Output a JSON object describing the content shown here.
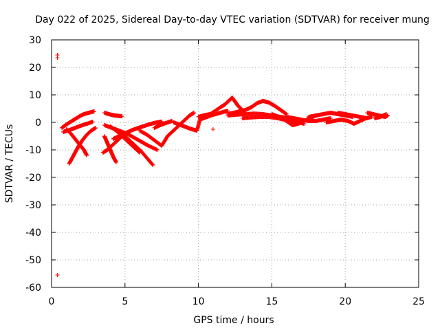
{
  "chart_data": {
    "type": "scatter",
    "title": "Day 022 of 2025, Sidereal Day-to-day VTEC variation (SDTVAR) for receiver mung",
    "xlabel": "GPS time / hours",
    "ylabel": "SDTVAR / TECUs",
    "xlim": [
      0,
      25
    ],
    "ylim": [
      -60,
      30
    ],
    "x_ticks": [
      0,
      5,
      10,
      15,
      20,
      25
    ],
    "y_ticks": [
      -60,
      -50,
      -40,
      -30,
      -20,
      -10,
      0,
      10,
      20,
      30
    ],
    "grid": true,
    "marker": "+",
    "series": [
      {
        "name": "SDTVAR",
        "color": "#ff0000",
        "points": [
          [
            0.4,
            24.5
          ],
          [
            0.4,
            23.5
          ],
          [
            0.4,
            -55.5
          ],
          [
            11.0,
            -2.5
          ],
          [
            0.7,
            -2.0
          ],
          [
            1.0,
            -0.8
          ],
          [
            1.3,
            0.2
          ],
          [
            1.6,
            1.2
          ],
          [
            1.9,
            2.2
          ],
          [
            2.2,
            3.0
          ],
          [
            2.6,
            3.6
          ],
          [
            2.9,
            4.0
          ],
          [
            0.8,
            -3.5
          ],
          [
            1.2,
            -2.8
          ],
          [
            1.6,
            -2.0
          ],
          [
            2.0,
            -1.2
          ],
          [
            2.4,
            -0.5
          ],
          [
            2.8,
            0.2
          ],
          [
            1.2,
            -15.0
          ],
          [
            1.5,
            -12.0
          ],
          [
            1.8,
            -9.0
          ],
          [
            2.1,
            -6.5
          ],
          [
            2.4,
            -4.5
          ],
          [
            2.7,
            -3.0
          ],
          [
            3.0,
            -2.0
          ],
          [
            1.0,
            -2.5
          ],
          [
            1.3,
            -4.0
          ],
          [
            1.6,
            -6.0
          ],
          [
            1.9,
            -8.0
          ],
          [
            2.2,
            -10.0
          ],
          [
            2.4,
            -12.0
          ],
          [
            3.6,
            3.5
          ],
          [
            3.9,
            3.0
          ],
          [
            4.2,
            2.6
          ],
          [
            4.5,
            2.4
          ],
          [
            4.8,
            2.2
          ],
          [
            3.6,
            -5.0
          ],
          [
            3.8,
            -7.5
          ],
          [
            4.0,
            -10.0
          ],
          [
            4.2,
            -12.5
          ],
          [
            4.4,
            -14.5
          ],
          [
            3.5,
            -11.0
          ],
          [
            3.8,
            -10.0
          ],
          [
            4.1,
            -8.5
          ],
          [
            4.4,
            -7.0
          ],
          [
            4.7,
            -5.5
          ],
          [
            5.0,
            -4.0
          ],
          [
            3.6,
            -1.0
          ],
          [
            4.1,
            -2.0
          ],
          [
            4.6,
            -3.0
          ],
          [
            5.1,
            -4.0
          ],
          [
            5.6,
            -5.5
          ],
          [
            6.1,
            -7.0
          ],
          [
            6.6,
            -8.5
          ],
          [
            7.2,
            -10.0
          ],
          [
            4.2,
            -6.0
          ],
          [
            4.6,
            -5.0
          ],
          [
            5.0,
            -4.0
          ],
          [
            5.4,
            -3.0
          ],
          [
            5.8,
            -2.2
          ],
          [
            6.2,
            -1.5
          ],
          [
            6.6,
            -0.8
          ],
          [
            7.0,
            -0.2
          ],
          [
            7.5,
            0.3
          ],
          [
            4.5,
            -3.0
          ],
          [
            4.9,
            -4.5
          ],
          [
            5.3,
            -6.5
          ],
          [
            5.7,
            -8.5
          ],
          [
            6.1,
            -10.5
          ],
          [
            6.5,
            -13.0
          ],
          [
            6.9,
            -15.5
          ],
          [
            4.0,
            -1.5
          ],
          [
            4.4,
            -3.0
          ],
          [
            4.8,
            -5.0
          ],
          [
            5.2,
            -7.0
          ],
          [
            5.6,
            -9.0
          ],
          [
            6.0,
            -11.0
          ],
          [
            7.0,
            -2.0
          ],
          [
            7.4,
            -1.0
          ],
          [
            7.8,
            -0.2
          ],
          [
            8.2,
            0.5
          ],
          [
            6.0,
            -3.0
          ],
          [
            6.5,
            -4.5
          ],
          [
            7.0,
            -6.5
          ],
          [
            7.5,
            -8.5
          ],
          [
            7.9,
            -5.0
          ],
          [
            8.2,
            -3.5
          ],
          [
            8.5,
            -2.0
          ],
          [
            8.8,
            -0.5
          ],
          [
            9.1,
            1.0
          ],
          [
            9.4,
            2.5
          ],
          [
            9.7,
            3.5
          ],
          [
            8.3,
            0.0
          ],
          [
            8.7,
            -0.8
          ],
          [
            9.1,
            -1.6
          ],
          [
            9.5,
            -2.4
          ],
          [
            9.9,
            -3.0
          ],
          [
            10.1,
            1.0
          ],
          [
            10.5,
            1.8
          ],
          [
            10.9,
            2.6
          ],
          [
            11.3,
            3.2
          ],
          [
            11.7,
            3.8
          ],
          [
            12.0,
            4.2
          ],
          [
            10.0,
            2.0
          ],
          [
            10.4,
            2.6
          ],
          [
            10.8,
            3.0
          ],
          [
            11.5,
            5.5
          ],
          [
            11.8,
            6.5
          ],
          [
            12.1,
            8.0
          ],
          [
            12.3,
            9.0
          ],
          [
            12.5,
            7.5
          ],
          [
            12.7,
            6.0
          ],
          [
            12.9,
            5.0
          ],
          [
            12.0,
            3.0
          ],
          [
            12.4,
            3.5
          ],
          [
            12.8,
            4.0
          ],
          [
            13.2,
            4.5
          ],
          [
            13.6,
            5.5
          ],
          [
            14.0,
            7.0
          ],
          [
            14.4,
            7.8
          ],
          [
            14.8,
            7.2
          ],
          [
            15.2,
            6.0
          ],
          [
            15.6,
            4.5
          ],
          [
            16.0,
            3.0
          ],
          [
            12.0,
            2.5
          ],
          [
            12.6,
            2.8
          ],
          [
            13.2,
            3.0
          ],
          [
            13.8,
            3.2
          ],
          [
            14.4,
            3.0
          ],
          [
            15.0,
            2.5
          ],
          [
            15.6,
            2.0
          ],
          [
            16.2,
            1.5
          ],
          [
            16.8,
            1.0
          ],
          [
            13.0,
            1.5
          ],
          [
            13.6,
            1.8
          ],
          [
            14.2,
            2.0
          ],
          [
            14.8,
            2.0
          ],
          [
            15.4,
            1.5
          ],
          [
            16.0,
            0.8
          ],
          [
            16.6,
            0.2
          ],
          [
            17.2,
            -0.5
          ],
          [
            15.0,
            3.0
          ],
          [
            15.5,
            2.0
          ],
          [
            16.0,
            0.5
          ],
          [
            16.4,
            -1.0
          ],
          [
            16.8,
            -0.5
          ],
          [
            17.2,
            0.5
          ],
          [
            17.6,
            1.5
          ],
          [
            18.0,
            2.5
          ],
          [
            16.0,
            2.0
          ],
          [
            16.5,
            1.5
          ],
          [
            17.0,
            1.0
          ],
          [
            17.5,
            0.5
          ],
          [
            18.0,
            0.5
          ],
          [
            18.5,
            1.0
          ],
          [
            19.0,
            1.5
          ],
          [
            17.5,
            2.0
          ],
          [
            18.0,
            2.5
          ],
          [
            18.5,
            3.0
          ],
          [
            19.0,
            3.5
          ],
          [
            19.5,
            3.0
          ],
          [
            20.0,
            2.5
          ],
          [
            20.5,
            2.0
          ],
          [
            18.7,
            0.0
          ],
          [
            19.2,
            0.5
          ],
          [
            19.7,
            1.0
          ],
          [
            20.2,
            0.5
          ],
          [
            20.6,
            -0.5
          ],
          [
            21.0,
            0.5
          ],
          [
            21.4,
            1.5
          ],
          [
            21.8,
            2.0
          ],
          [
            19.5,
            3.5
          ],
          [
            20.0,
            3.0
          ],
          [
            20.5,
            2.5
          ],
          [
            21.0,
            2.0
          ],
          [
            21.5,
            1.5
          ],
          [
            21.5,
            3.5
          ],
          [
            21.9,
            3.0
          ],
          [
            22.3,
            2.5
          ],
          [
            22.7,
            2.0
          ],
          [
            22.9,
            2.5
          ],
          [
            22.0,
            1.5
          ],
          [
            22.4,
            2.0
          ],
          [
            22.8,
            3.0
          ]
        ]
      }
    ]
  }
}
